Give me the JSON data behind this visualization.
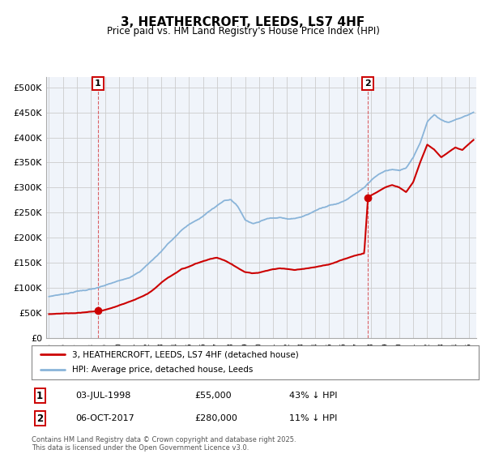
{
  "title": "3, HEATHERCROFT, LEEDS, LS7 4HF",
  "subtitle": "Price paid vs. HM Land Registry's House Price Index (HPI)",
  "xlim_start": 1994.8,
  "xlim_end": 2025.5,
  "ylim": [
    0,
    520000
  ],
  "yticks": [
    0,
    50000,
    100000,
    150000,
    200000,
    250000,
    300000,
    350000,
    400000,
    450000,
    500000
  ],
  "ytick_labels": [
    "£0",
    "£50K",
    "£100K",
    "£150K",
    "£200K",
    "£250K",
    "£300K",
    "£350K",
    "£400K",
    "£450K",
    "£500K"
  ],
  "sale1_date": 1998.5,
  "sale1_price": 55000,
  "sale1_label": "1",
  "sale2_date": 2017.77,
  "sale2_price": 280000,
  "sale2_label": "2",
  "red_line_color": "#cc0000",
  "blue_line_color": "#89b4d9",
  "annotation_box_color": "#cc0000",
  "grid_color": "#cccccc",
  "background_color": "#ffffff",
  "plot_bg_color": "#f0f4fa",
  "legend_label_red": "3, HEATHERCROFT, LEEDS, LS7 4HF (detached house)",
  "legend_label_blue": "HPI: Average price, detached house, Leeds",
  "footer_text": "Contains HM Land Registry data © Crown copyright and database right 2025.\nThis data is licensed under the Open Government Licence v3.0.",
  "table_rows": [
    {
      "num": "1",
      "date": "03-JUL-1998",
      "price": "£55,000",
      "hpi": "43% ↓ HPI"
    },
    {
      "num": "2",
      "date": "06-OCT-2017",
      "price": "£280,000",
      "hpi": "11% ↓ HPI"
    }
  ],
  "hpi_knots_x": [
    1995.0,
    1995.5,
    1996.0,
    1996.5,
    1997.0,
    1997.5,
    1998.0,
    1998.5,
    1999.0,
    1999.5,
    2000.0,
    2000.5,
    2001.0,
    2001.5,
    2002.0,
    2002.5,
    2003.0,
    2003.5,
    2004.0,
    2004.5,
    2005.0,
    2005.5,
    2006.0,
    2006.5,
    2007.0,
    2007.5,
    2008.0,
    2008.5,
    2009.0,
    2009.5,
    2010.0,
    2010.5,
    2011.0,
    2011.5,
    2012.0,
    2012.5,
    2013.0,
    2013.5,
    2014.0,
    2014.5,
    2015.0,
    2015.5,
    2016.0,
    2016.5,
    2017.0,
    2017.5,
    2018.0,
    2018.5,
    2019.0,
    2019.5,
    2020.0,
    2020.5,
    2021.0,
    2021.5,
    2022.0,
    2022.5,
    2023.0,
    2023.5,
    2024.0,
    2024.5,
    2025.3
  ],
  "hpi_knots_y": [
    83000,
    86000,
    88000,
    91000,
    94000,
    96000,
    98000,
    100000,
    104000,
    108000,
    112000,
    118000,
    124000,
    132000,
    145000,
    158000,
    172000,
    188000,
    200000,
    215000,
    225000,
    232000,
    242000,
    252000,
    262000,
    272000,
    275000,
    260000,
    235000,
    228000,
    232000,
    237000,
    240000,
    242000,
    238000,
    240000,
    243000,
    248000,
    255000,
    262000,
    267000,
    270000,
    276000,
    284000,
    292000,
    300000,
    315000,
    325000,
    332000,
    335000,
    332000,
    338000,
    360000,
    390000,
    430000,
    445000,
    435000,
    430000,
    435000,
    440000,
    450000
  ],
  "red_knots_x": [
    1995.0,
    1995.5,
    1996.0,
    1996.5,
    1997.0,
    1997.5,
    1998.0,
    1998.5,
    1999.0,
    1999.5,
    2000.0,
    2000.5,
    2001.0,
    2001.5,
    2002.0,
    2002.5,
    2003.0,
    2003.5,
    2004.0,
    2004.5,
    2005.0,
    2005.5,
    2006.0,
    2006.5,
    2007.0,
    2007.5,
    2008.0,
    2008.5,
    2009.0,
    2009.5,
    2010.0,
    2010.5,
    2011.0,
    2011.5,
    2012.0,
    2012.5,
    2013.0,
    2013.5,
    2014.0,
    2014.5,
    2015.0,
    2015.5,
    2016.0,
    2016.5,
    2017.0,
    2017.5,
    2017.77,
    2018.0,
    2018.5,
    2019.0,
    2019.5,
    2020.0,
    2020.5,
    2021.0,
    2021.5,
    2022.0,
    2022.5,
    2023.0,
    2023.5,
    2024.0,
    2024.5,
    2025.3
  ],
  "red_knots_y": [
    48000,
    49000,
    50000,
    51000,
    52000,
    53000,
    54000,
    55000,
    58000,
    62000,
    67000,
    72000,
    77000,
    83000,
    90000,
    100000,
    112000,
    122000,
    130000,
    138000,
    142000,
    148000,
    152000,
    157000,
    160000,
    155000,
    148000,
    140000,
    132000,
    130000,
    132000,
    135000,
    138000,
    140000,
    138000,
    136000,
    138000,
    140000,
    142000,
    145000,
    148000,
    152000,
    158000,
    163000,
    167000,
    170000,
    280000,
    285000,
    292000,
    300000,
    305000,
    300000,
    290000,
    310000,
    350000,
    385000,
    375000,
    360000,
    370000,
    380000,
    375000,
    395000
  ]
}
